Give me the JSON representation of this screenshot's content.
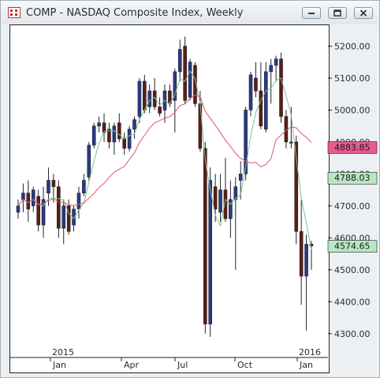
{
  "window": {
    "title": "COMP - NASDAQ Composite Index, Weekly",
    "icons": {
      "app": "chart-app-icon",
      "minimize": "minimize-icon",
      "maximize": "maximize-icon",
      "close": "close-icon"
    }
  },
  "chart_data": {
    "type": "candlestick",
    "title": "COMP - NASDAQ Composite Index, Weekly",
    "xlabel": "",
    "ylabel": "",
    "ylim": [
      4260,
      5300
    ],
    "y_ticks": [
      "5200.00",
      "5100.00",
      "5000.00",
      "4900.00",
      "4800.00",
      "4700.00",
      "4600.00",
      "4500.00",
      "4400.00",
      "4300.00"
    ],
    "year_labels": [
      "2015",
      "2016"
    ],
    "month_labels": [
      "Jan",
      "Apr",
      "Jul",
      "Oct",
      "Jan"
    ],
    "grid": false,
    "colors": {
      "up": "#2b3a84",
      "down": "#5e1d10",
      "sma_fast": "#7fc08b",
      "sma_slow": "#e05572",
      "price_tag_pink": "#e85a8e",
      "price_tag_green": "#b9e7c5"
    },
    "price_tags": [
      {
        "label": "4883.85",
        "value": 4883.85,
        "color": "#e85a8e"
      },
      {
        "label": "4788.03",
        "value": 4788.03,
        "color": "#b9e7c5"
      },
      {
        "label": "4574.65",
        "value": 4574.65,
        "color": "#b9e7c5"
      }
    ],
    "candles": [
      [
        4680,
        4720,
        4660,
        4700
      ],
      [
        4720,
        4770,
        4680,
        4740
      ],
      [
        4740,
        4780,
        4650,
        4690
      ],
      [
        4700,
        4760,
        4680,
        4750
      ],
      [
        4730,
        4750,
        4620,
        4640
      ],
      [
        4640,
        4760,
        4600,
        4720
      ],
      [
        4740,
        4820,
        4700,
        4780
      ],
      [
        4780,
        4800,
        4710,
        4760
      ],
      [
        4760,
        4780,
        4600,
        4630
      ],
      [
        4630,
        4720,
        4580,
        4700
      ],
      [
        4700,
        4720,
        4610,
        4620
      ],
      [
        4640,
        4700,
        4620,
        4690
      ],
      [
        4690,
        4760,
        4660,
        4740
      ],
      [
        4740,
        4800,
        4730,
        4780
      ],
      [
        4790,
        4900,
        4780,
        4890
      ],
      [
        4890,
        4960,
        4880,
        4950
      ],
      [
        4950,
        4980,
        4930,
        4960
      ],
      [
        4960,
        4990,
        4900,
        4930
      ],
      [
        4940,
        4960,
        4880,
        4900
      ],
      [
        4900,
        4960,
        4860,
        4950
      ],
      [
        4960,
        4990,
        4900,
        4910
      ],
      [
        4910,
        4930,
        4860,
        4880
      ],
      [
        4880,
        4950,
        4870,
        4940
      ],
      [
        4940,
        4980,
        4910,
        4970
      ],
      [
        4980,
        5100,
        4960,
        5090
      ],
      [
        5090,
        5110,
        4990,
        5000
      ],
      [
        5010,
        5080,
        4990,
        5060
      ],
      [
        5060,
        5100,
        5000,
        5010
      ],
      [
        5010,
        5040,
        4980,
        4990
      ],
      [
        5000,
        5080,
        4960,
        5060
      ],
      [
        5060,
        5080,
        5010,
        5020
      ],
      [
        5030,
        5130,
        4930,
        5120
      ],
      [
        5120,
        5220,
        5090,
        5190
      ],
      [
        5200,
        5230,
        5020,
        5030
      ],
      [
        5040,
        5160,
        5030,
        5150
      ],
      [
        5140,
        5150,
        5010,
        5020
      ],
      [
        5020,
        5060,
        4870,
        4880
      ],
      [
        4880,
        4900,
        4300,
        4330
      ],
      [
        4330,
        4820,
        4290,
        4780
      ],
      [
        4760,
        4800,
        4650,
        4690
      ],
      [
        4680,
        4800,
        4650,
        4750
      ],
      [
        4750,
        4850,
        4650,
        4660
      ],
      [
        4660,
        4780,
        4600,
        4720
      ],
      [
        4720,
        4790,
        4500,
        4760
      ],
      [
        4780,
        4840,
        4720,
        4800
      ],
      [
        4800,
        5010,
        4780,
        5000
      ],
      [
        5000,
        5120,
        4980,
        5110
      ],
      [
        5100,
        5150,
        5040,
        5060
      ],
      [
        5060,
        5150,
        4940,
        4950
      ],
      [
        4940,
        5150,
        4930,
        5120
      ],
      [
        5120,
        5160,
        5020,
        5140
      ],
      [
        5140,
        5170,
        5090,
        5160
      ],
      [
        5160,
        5180,
        4960,
        4980
      ],
      [
        4980,
        5000,
        4880,
        4900
      ],
      [
        4900,
        5010,
        4880,
        4900
      ],
      [
        4900,
        4920,
        4580,
        4620
      ],
      [
        4620,
        4720,
        4390,
        4480
      ],
      [
        4480,
        4610,
        4310,
        4580
      ],
      [
        4580,
        4590,
        4500,
        4574.65
      ]
    ]
  }
}
